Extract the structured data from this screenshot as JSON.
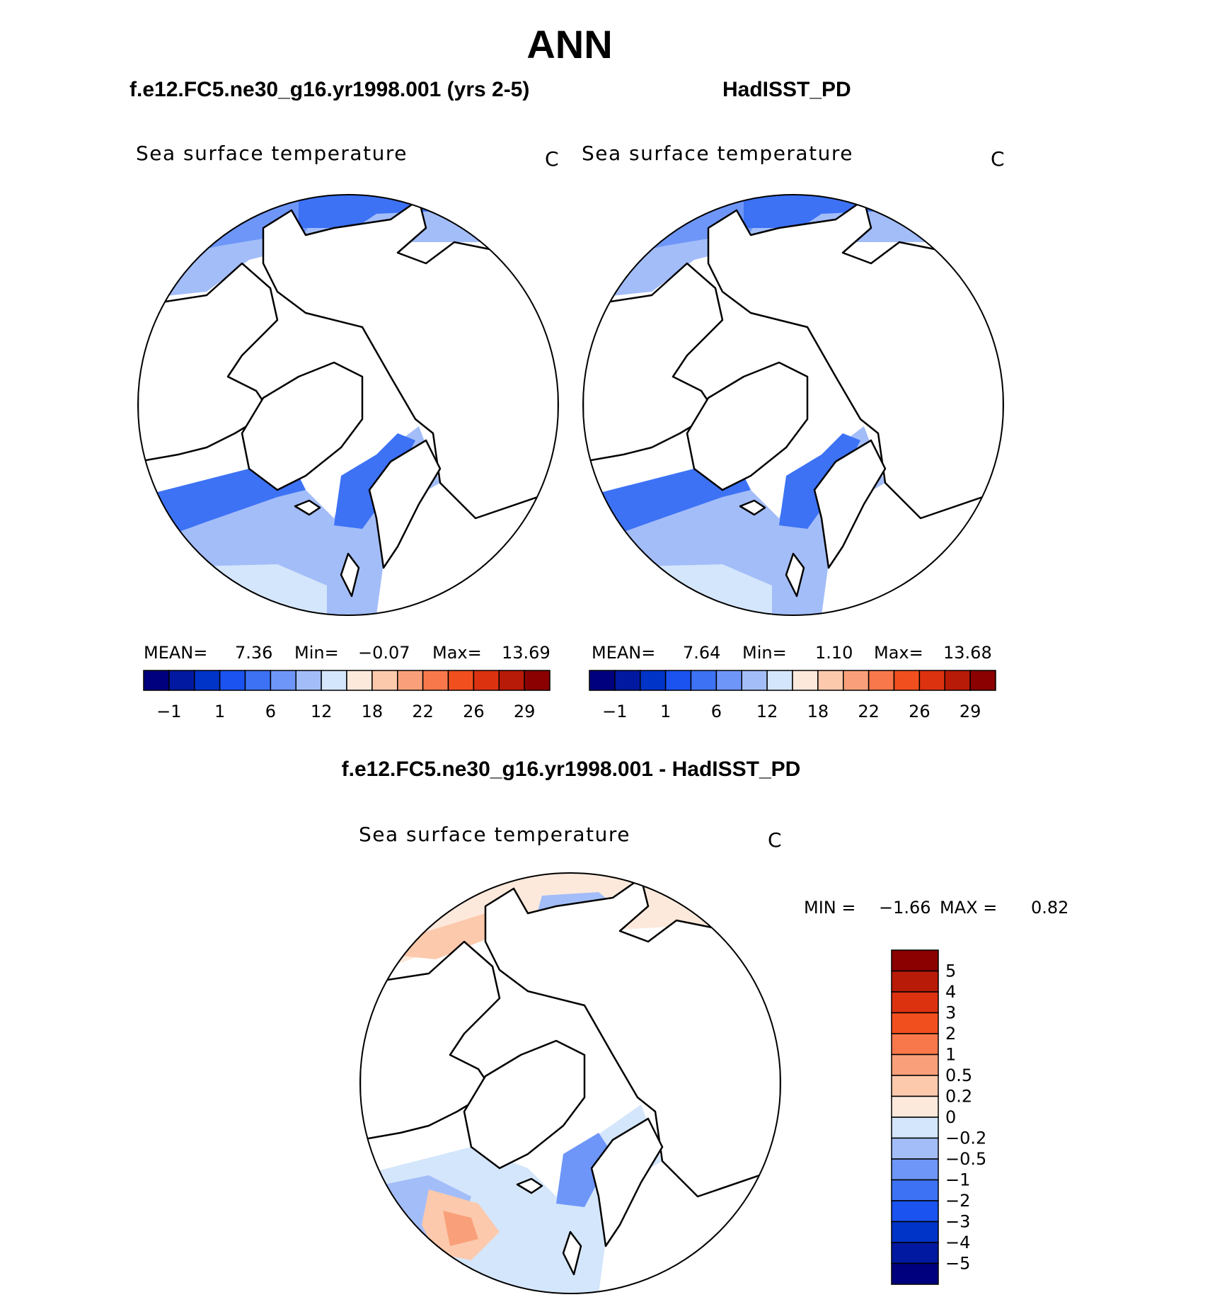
{
  "title": "ANN",
  "panels": [
    {
      "case": "f.e12.FC5.ne30_g16.yr1998.001 (yrs 2-5)",
      "variable": "Sea surface temperature",
      "units": "C",
      "stats": {
        "mean_label": "MEAN=",
        "mean": "7.36",
        "min_label": "Min=",
        "min": "−0.07",
        "max_label": "Max=",
        "max": "13.69"
      }
    },
    {
      "case": "HadISST_PD",
      "variable": "Sea surface temperature",
      "units": "C",
      "stats": {
        "mean_label": "MEAN=",
        "mean": "7.64",
        "min_label": "Min=",
        "min": "1.10",
        "max_label": "Max=",
        "max": "13.68"
      }
    }
  ],
  "diff_panel": {
    "case": "f.e12.FC5.ne30_g16.yr1998.001 - HadISST_PD",
    "variable": "Sea surface temperature",
    "units": "C",
    "min_label": "MIN =",
    "min": "−1.66",
    "max_label": "MAX =",
    "max": "0.82"
  },
  "chart_data": [
    {
      "type": "heatmap",
      "projection": "north polar stereographic",
      "title": "Sea surface temperature",
      "units": "C",
      "colorbar": {
        "orientation": "horizontal",
        "labels": [
          "−1",
          "1",
          "6",
          "12",
          "18",
          "22",
          "26",
          "29"
        ],
        "colors": [
          "#00007f",
          "#0019a0",
          "#0033c8",
          "#1a53f0",
          "#3d72f5",
          "#6e96f8",
          "#a3bdf9",
          "#d4e6fb",
          "#fde9dc",
          "#fcc9ad",
          "#f9a07a",
          "#f8784b",
          "#f24f1e",
          "#dd3210",
          "#b81b08",
          "#8b0000"
        ]
      },
      "stats": {
        "mean": 7.36,
        "min": -0.07,
        "max": 13.69
      }
    },
    {
      "type": "heatmap",
      "projection": "north polar stereographic",
      "title": "Sea surface temperature",
      "units": "C",
      "colorbar": {
        "orientation": "horizontal",
        "labels": [
          "−1",
          "1",
          "6",
          "12",
          "18",
          "22",
          "26",
          "29"
        ],
        "colors": [
          "#00007f",
          "#0019a0",
          "#0033c8",
          "#1a53f0",
          "#3d72f5",
          "#6e96f8",
          "#a3bdf9",
          "#d4e6fb",
          "#fde9dc",
          "#fcc9ad",
          "#f9a07a",
          "#f8784b",
          "#f24f1e",
          "#dd3210",
          "#b81b08",
          "#8b0000"
        ]
      },
      "stats": {
        "mean": 7.64,
        "min": 1.1,
        "max": 13.68
      }
    },
    {
      "type": "heatmap",
      "projection": "north polar stereographic",
      "title": "Sea surface temperature",
      "units": "C",
      "colorbar": {
        "orientation": "vertical",
        "labels": [
          "5",
          "4",
          "3",
          "2",
          "1",
          "0.5",
          "0.2",
          "0",
          "−0.2",
          "−0.5",
          "−1",
          "−2",
          "−3",
          "−4",
          "−5"
        ],
        "colors": [
          "#8b0000",
          "#b81b08",
          "#dd3210",
          "#f24f1e",
          "#f8784b",
          "#f9a07a",
          "#fcc9ad",
          "#fde9dc",
          "#d4e6fb",
          "#a3bdf9",
          "#6e96f8",
          "#3d72f5",
          "#1a53f0",
          "#0033c8",
          "#0019a0",
          "#00007f"
        ]
      },
      "stats": {
        "min": -1.66,
        "max": 0.82
      }
    }
  ]
}
